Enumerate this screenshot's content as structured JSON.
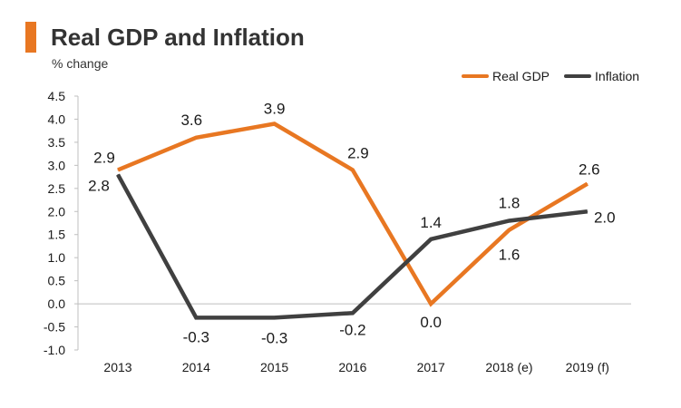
{
  "colors": {
    "real_gdp": "#e87722",
    "inflation": "#404040",
    "accent_bar": "#e87722"
  },
  "chart_data": {
    "type": "line",
    "title": "Real GDP and Inflation",
    "subtitle": "% change",
    "categories": [
      "2013",
      "2014",
      "2015",
      "2016",
      "2017",
      "2018 (e)",
      "2019 (f)"
    ],
    "series": [
      {
        "name": "Real GDP",
        "values": [
          2.9,
          3.6,
          3.9,
          2.9,
          0.0,
          1.6,
          2.6
        ],
        "labels": [
          "2.9",
          "3.6",
          "3.9",
          "2.9",
          "0.0",
          "1.6",
          "2.6"
        ]
      },
      {
        "name": "Inflation",
        "values": [
          2.8,
          -0.3,
          -0.3,
          -0.2,
          1.4,
          1.8,
          2.0
        ],
        "labels": [
          "2.8",
          "-0.3",
          "-0.3",
          "-0.2",
          "1.4",
          "1.8",
          "2.0"
        ]
      }
    ],
    "ylim": [
      -1.0,
      4.5
    ],
    "yticks": [
      "4.5",
      "4.0",
      "3.5",
      "3.0",
      "2.5",
      "2.0",
      "1.5",
      "1.0",
      "0.5",
      "0.0",
      "-0.5",
      "-1.0"
    ],
    "xlabel": "",
    "ylabel": "",
    "legend": "top-right",
    "grid": false
  }
}
